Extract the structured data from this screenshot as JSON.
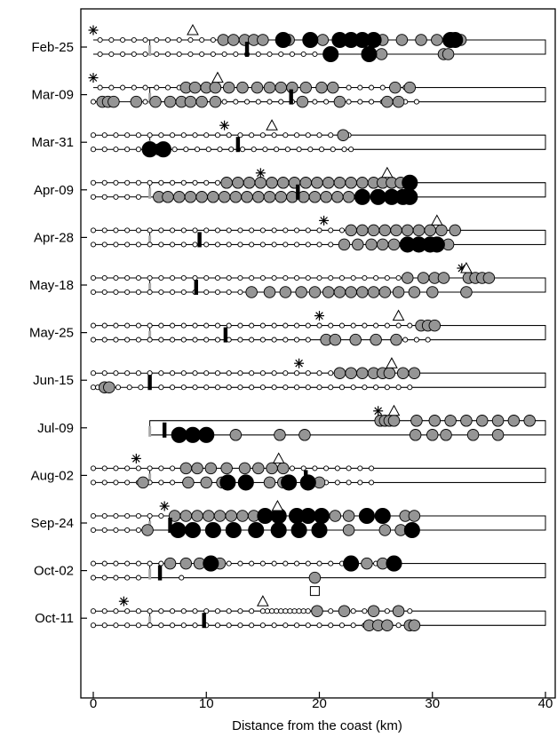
{
  "chart_data": {
    "type": "scatter",
    "xlabel": "Distance from the coast (km)",
    "xlim": [
      0,
      40
    ],
    "x_ticks": [
      0,
      10,
      20,
      30,
      40
    ],
    "legend": "none",
    "point_classes": [
      "white",
      "gray",
      "black"
    ],
    "rows": [
      {
        "date": "Feb-25",
        "star_x": 0,
        "triangle_x": 8.8,
        "square_x": null,
        "upper_box_end": 40,
        "lower_box_end": 40,
        "gray_marker_x": 5,
        "black_marker_x": 13.6,
        "upper": {
          "white": [
            0.6,
            1.6,
            2.6,
            3.6,
            4.6,
            5.6,
            6.6,
            7.6,
            8.6,
            9.6,
            10.6
          ],
          "gray": [
            11.5,
            12.4,
            13.4,
            14.2,
            15.0,
            17.3,
            19.2,
            20.3,
            24.5,
            25.6,
            27.3,
            29.0,
            30.4,
            32.5
          ],
          "black": [
            16.8,
            19.2,
            21.8,
            22.8,
            23.8,
            24.8,
            31.6,
            32.0
          ]
        },
        "lower": {
          "white": [
            0.6,
            1.6,
            2.6,
            3.6,
            4.6,
            5.6,
            6.6,
            7.6,
            8.6,
            9.6,
            10.6,
            11.6,
            12.6,
            13.6,
            14.6,
            15.6,
            16.6,
            17.6,
            18.6,
            19.6
          ],
          "gray": [
            25.5,
            31.0,
            31.4
          ],
          "black": [
            21.0,
            24.4
          ]
        }
      },
      {
        "date": "Mar-09",
        "star_x": 0,
        "triangle_x": 11,
        "square_x": null,
        "upper_box_end": 40,
        "lower_box_end": 40,
        "gray_marker_x": 5,
        "black_marker_x": 17.5,
        "upper": {
          "white": [
            0.6,
            1.6,
            2.6,
            3.6,
            4.6,
            5.6,
            6.6,
            7.6,
            8.6,
            9.6,
            10.6,
            22.6,
            23.6,
            24.6,
            25.6,
            27.6
          ],
          "gray": [
            8.2,
            9.0,
            10.0,
            10.8,
            12.0,
            13.2,
            14.5,
            15.6,
            16.6,
            17.6,
            18.8,
            20.2,
            21.2,
            26.7,
            28.0
          ],
          "black": []
        },
        "lower": {
          "white": [
            0,
            0.6,
            3.6,
            4.6,
            5.6,
            6.6,
            11.6,
            12.6,
            13.6,
            14.6,
            15.6,
            16.6,
            17.6,
            18.6,
            19.6,
            20.6,
            21.6,
            22.6,
            23.6,
            24.6,
            25.6,
            26.6,
            27.6,
            28.6
          ],
          "gray": [
            0.8,
            1.3,
            1.8,
            3.8,
            5.5,
            6.8,
            7.8,
            8.6,
            9.6,
            10.8,
            18.5,
            21.8,
            26.0,
            27.0
          ],
          "black": []
        }
      },
      {
        "date": "Mar-31",
        "star_x": 11.6,
        "triangle_x": 15.8,
        "square_x": null,
        "upper_box_end": 40,
        "lower_box_end": 40,
        "gray_marker_x": 5,
        "black_marker_x": 12.8,
        "upper": {
          "white": [
            0,
            1.0,
            2.0,
            3.0,
            4.0,
            5.0,
            6.0,
            7.0,
            8.0,
            9.0,
            10.0,
            11.0,
            12.0,
            13.0,
            14.0,
            15.0,
            16.0,
            17.0,
            18.0,
            19.0,
            20.0,
            21.0,
            22.6
          ],
          "gray": [
            22.1
          ],
          "black": []
        },
        "lower": {
          "white": [
            0,
            1.0,
            2.0,
            3.0,
            4.0,
            7.2,
            8.2,
            9.2,
            10.2,
            11.2,
            12.2,
            13.2,
            14.2,
            15.2,
            16.2,
            17.2,
            18.2,
            19.2,
            20.2,
            21.2,
            22.2,
            22.8
          ],
          "gray": [
            5.8
          ],
          "black": [
            5.0,
            6.2
          ]
        }
      },
      {
        "date": "Apr-09",
        "star_x": 14.8,
        "triangle_x": 26.0,
        "square_x": null,
        "upper_box_end": 40,
        "lower_box_end": 40,
        "gray_marker_x": 5,
        "black_marker_x": 18.1,
        "upper": {
          "white": [
            0,
            1.0,
            2.0,
            3.0,
            4.0,
            5.0,
            6.0,
            7.0,
            8.0,
            9.0,
            10.0,
            11.0
          ],
          "gray": [
            11.8,
            12.8,
            13.8,
            14.8,
            15.8,
            16.8,
            17.8,
            18.8,
            19.8,
            20.8,
            21.8,
            22.8,
            23.8,
            24.8,
            25.6,
            26.4,
            27.2
          ],
          "black": [
            28.0
          ]
        },
        "lower": {
          "white": [
            0,
            1.0,
            2.0,
            3.0,
            4.0
          ],
          "gray": [
            5.8,
            6.6,
            7.6,
            8.6,
            9.6,
            10.6,
            11.6,
            12.6,
            13.6,
            14.6,
            15.6,
            16.6,
            17.6,
            18.6,
            19.6,
            20.6,
            21.6,
            22.6
          ],
          "black": [
            23.8,
            25.2,
            26.4,
            27.4,
            28.0
          ]
        }
      },
      {
        "date": "Apr-28",
        "star_x": 20.4,
        "triangle_x": 30.4,
        "square_x": null,
        "upper_box_end": 40,
        "lower_box_end": 40,
        "gray_marker_x": 5,
        "black_marker_x": 9.4,
        "upper": {
          "white": [
            0,
            1.0,
            2.0,
            3.0,
            4.0,
            5.0,
            6.0,
            7.0,
            8.0,
            9.0,
            10.0,
            11.0,
            12.0,
            13.0,
            14.0,
            15.0,
            16.0,
            17.0,
            18.0,
            19.0,
            20.0,
            21.0,
            22.0
          ],
          "gray": [
            22.8,
            23.8,
            24.8,
            25.8,
            26.8,
            27.8,
            28.8,
            29.8,
            30.8,
            32.0
          ],
          "black": []
        },
        "lower": {
          "white": [
            0,
            1.0,
            2.0,
            3.0,
            4.0,
            5.0,
            6.0,
            7.0,
            8.0,
            9.0,
            10.0,
            11.0,
            12.0,
            13.0,
            14.0,
            15.0,
            16.0,
            17.0,
            18.0,
            19.0,
            20.0,
            21.0
          ],
          "gray": [
            22.2,
            23.4,
            24.6,
            25.6,
            26.6,
            31.4
          ],
          "black": [
            27.8,
            28.8,
            29.8,
            30.4
          ]
        }
      },
      {
        "date": "May-18",
        "star_x": 32.6,
        "triangle_x": 33.0,
        "square_x": null,
        "upper_box_end": 40,
        "lower_box_end": 40,
        "gray_marker_x": 5,
        "black_marker_x": 9.1,
        "upper": {
          "white": [
            0,
            1.0,
            2.0,
            3.0,
            4.0,
            5.0,
            6.0,
            7.0,
            8.0,
            9.0,
            10.0,
            11.0,
            12.0,
            13.0,
            14.0,
            15.0,
            16.0,
            17.0,
            18.0,
            19.0,
            20.0,
            21.0,
            22.0,
            23.0,
            24.0,
            25.0,
            26.0,
            27.0
          ],
          "gray": [
            27.8,
            29.2,
            30.2,
            31.0,
            33.2,
            33.8,
            34.4,
            35.0
          ],
          "black": []
        },
        "lower": {
          "white": [
            0,
            1.0,
            2.0,
            3.0,
            4.0,
            5.0,
            6.0,
            7.0,
            8.0,
            9.0,
            10.0,
            11.0,
            12.0,
            13.0
          ],
          "gray": [
            14.0,
            15.6,
            17.0,
            18.4,
            19.6,
            20.8,
            21.8,
            22.8,
            23.8,
            24.8,
            25.8,
            27.0,
            28.4,
            30.0,
            33.0
          ],
          "black": []
        }
      },
      {
        "date": "May-25",
        "star_x": 20.0,
        "triangle_x": 27.0,
        "square_x": null,
        "upper_box_end": 40,
        "lower_box_end": 40,
        "gray_marker_x": 5,
        "black_marker_x": 11.7,
        "upper": {
          "white": [
            0,
            1.0,
            2.0,
            3.0,
            4.0,
            5.0,
            6.0,
            7.0,
            8.0,
            9.0,
            10.0,
            11.0,
            12.0,
            13.0,
            14.0,
            15.0,
            16.0,
            17.0,
            18.0,
            19.0,
            20.0,
            21.0,
            22.0,
            23.0,
            24.0,
            25.0,
            26.0,
            27.0,
            28.0
          ],
          "gray": [
            29.0,
            29.6,
            30.2
          ],
          "black": []
        },
        "lower": {
          "white": [
            0,
            1.0,
            2.0,
            3.0,
            4.0,
            5.0,
            6.0,
            7.0,
            8.0,
            9.0,
            10.0,
            11.0,
            12.0,
            13.0,
            14.0,
            15.0,
            16.0,
            17.0,
            18.0,
            19.0,
            27.6,
            28.6,
            29.6
          ],
          "gray": [
            20.6,
            21.4,
            23.2,
            25.0,
            26.8
          ],
          "black": []
        }
      },
      {
        "date": "Jun-15",
        "star_x": 18.2,
        "triangle_x": 26.4,
        "square_x": null,
        "upper_box_end": 40,
        "lower_box_end": 40,
        "gray_marker_x": 5,
        "black_marker_x": 5.0,
        "upper": {
          "white": [
            0,
            1.0,
            2.0,
            3.0,
            4.0,
            5.0,
            6.0,
            7.0,
            8.0,
            9.0,
            10.0,
            11.0,
            12.0,
            13.0,
            14.0,
            15.0,
            16.0,
            17.0,
            18.0,
            19.0,
            20.0,
            21.0
          ],
          "gray": [
            21.8,
            22.8,
            23.8,
            24.8,
            25.6,
            26.2,
            27.4,
            28.4
          ],
          "black": []
        },
        "lower": {
          "white": [
            0,
            0.4,
            2.2,
            3.2,
            4.2,
            6.0,
            7.0,
            8.0,
            9.0,
            10.0,
            11.0,
            12.0,
            13.0,
            14.0,
            15.0,
            16.0,
            17.0,
            18.0,
            19.0,
            20.0,
            21.0,
            22.0,
            23.0,
            24.0,
            25.0,
            26.0,
            27.0,
            28.0
          ],
          "gray": [
            1.0,
            1.4
          ],
          "black": []
        }
      },
      {
        "date": "Jul-09",
        "star_x": 25.2,
        "triangle_x": 26.6,
        "square_x": null,
        "upper_box_end": 40,
        "lower_box_end": 40,
        "upper_box_start": 5,
        "lower_box_start": 5,
        "gray_marker_x": 5,
        "black_marker_x": 6.3,
        "upper": {
          "white": [],
          "gray": [
            25.4,
            25.8,
            26.2,
            26.6,
            28.6,
            30.2,
            31.6,
            33.0,
            34.4,
            35.8,
            37.2,
            38.6
          ],
          "black": []
        },
        "lower": {
          "white": [],
          "gray": [
            12.6,
            16.5,
            18.7,
            28.5,
            30.0,
            31.2,
            33.6,
            35.8
          ],
          "black": [
            7.6,
            8.8,
            10.0
          ]
        }
      },
      {
        "date": "Aug-02",
        "star_x": 3.8,
        "triangle_x": 16.4,
        "square_x": null,
        "upper_box_end": 40,
        "lower_box_end": 40,
        "gray_marker_x": 5,
        "black_marker_x": 18.8,
        "upper": {
          "white": [
            0,
            1.0,
            2.0,
            3.0,
            4.0,
            5.0,
            6.0,
            7.0,
            15.6,
            16.6,
            17.6,
            18.6,
            19.6,
            20.6,
            21.6,
            22.6,
            23.6,
            24.6
          ],
          "gray": [
            8.2,
            9.2,
            10.4,
            11.8,
            13.4,
            14.6,
            15.8,
            16.8
          ],
          "black": []
        },
        "lower": {
          "white": [
            0,
            1.0,
            2.0,
            3.0,
            4.0,
            5.0,
            6.0,
            7.0,
            19.6,
            20.6,
            21.6,
            22.6,
            23.6,
            24.6
          ],
          "gray": [
            4.4,
            8.4,
            10.0,
            11.4,
            15.6,
            16.8,
            20.0
          ],
          "black": [
            11.9,
            13.5,
            17.3,
            19.0
          ]
        }
      },
      {
        "date": "Sep-24",
        "star_x": 6.3,
        "triangle_x": 16.3,
        "square_x": null,
        "upper_box_end": 40,
        "lower_box_end": 40,
        "gray_marker_x": 5,
        "black_marker_x": 6.8,
        "upper": {
          "white": [
            0,
            1.0,
            2.0,
            3.0,
            4.0,
            5.0,
            6.0
          ],
          "gray": [
            7.2,
            8.2,
            9.2,
            10.2,
            11.2,
            12.2,
            13.2,
            14.2,
            21.4,
            22.6,
            27.6,
            28.4
          ],
          "black": [
            15.2,
            16.4,
            18.0,
            19.0,
            20.2,
            24.2,
            25.6
          ]
        },
        "lower": {
          "white": [
            0,
            1.0,
            2.0,
            3.0,
            4.0
          ],
          "gray": [
            4.8,
            22.6,
            25.8,
            27.2
          ],
          "black": [
            7.5,
            8.8,
            10.6,
            12.4,
            14.4,
            16.4,
            18.2,
            20.0,
            28.2
          ]
        }
      },
      {
        "date": "Oct-02",
        "star_x": null,
        "triangle_x": null,
        "square_x": 19.6,
        "upper_box_end": 40,
        "lower_box_end": 40,
        "gray_marker_x": 5,
        "black_marker_x": 5.9,
        "upper": {
          "white": [
            0,
            1.0,
            2.0,
            3.0,
            4.0,
            5.0,
            6.0,
            12.0,
            13.0,
            14.0,
            15.0,
            16.0,
            17.0,
            18.0,
            19.0,
            20.0,
            21.0,
            22.0,
            23.0,
            24.0,
            25.0,
            26.0,
            27.0
          ],
          "gray": [
            6.8,
            8.2,
            9.4,
            11.2,
            24.2,
            25.6
          ],
          "black": [
            10.4,
            22.8,
            26.6
          ]
        },
        "lower": {
          "white": [
            0,
            1.0,
            2.0,
            3.0,
            4.0,
            7.8
          ],
          "gray": [
            19.6
          ],
          "black": []
        }
      },
      {
        "date": "Oct-11",
        "star_x": 2.7,
        "triangle_x": 15.0,
        "square_x": null,
        "upper_box_end": 40,
        "lower_box_end": 40,
        "gray_marker_x": 5,
        "black_marker_x": 9.8,
        "upper": {
          "white": [
            0,
            1.0,
            2.0,
            3.0,
            4.0,
            5.0,
            6.0,
            7.0,
            8.0,
            9.0,
            10.0,
            11.0,
            12.0,
            13.0,
            14.0,
            15.0,
            15.4,
            15.8,
            16.2,
            16.6,
            17.0,
            17.4,
            17.8,
            18.2,
            18.6,
            19.0,
            21.0,
            22.0,
            23.0,
            24.0,
            25.0,
            26.0,
            27.0,
            28.0
          ],
          "gray": [
            19.8,
            22.2,
            24.8,
            27.0
          ],
          "black": []
        },
        "lower": {
          "white": [
            0,
            1.0,
            2.0,
            3.0,
            4.0,
            5.0,
            6.0,
            7.0,
            8.0,
            9.0,
            10.0,
            11.0,
            12.0,
            13.0,
            14.0,
            15.0,
            16.0,
            17.0,
            18.0,
            19.0,
            20.0,
            21.0,
            22.0,
            23.0,
            24.0,
            25.0,
            26.0,
            27.0,
            28.0
          ],
          "gray": [
            24.4,
            25.2,
            26.0,
            28.0,
            28.4
          ],
          "black": []
        }
      }
    ]
  }
}
